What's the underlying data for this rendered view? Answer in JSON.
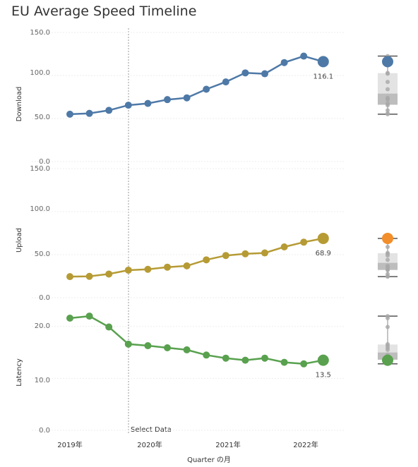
{
  "title": "EU Average Speed Timeline",
  "x_axis_label": "Quarter の月",
  "x_tick_labels": [
    "2019年",
    "2020年",
    "2021年",
    "2022年"
  ],
  "reference_line_label": "Select Data",
  "colors": {
    "download": "#4e79a7",
    "upload": "#b69b35",
    "latency": "#59a14f",
    "upload_box_dot": "#f28e2b",
    "grid": "#eeeeee",
    "box": "#d8d8d8"
  },
  "chart_data": [
    {
      "type": "line",
      "ylabel": "Download",
      "ylim": [
        0,
        150
      ],
      "yticks": [
        "0.0",
        "50.0",
        "100.0",
        "150.0"
      ],
      "x": [
        "2019 Q1",
        "2019 Q2",
        "2019 Q3",
        "2019 Q4",
        "2020 Q1",
        "2020 Q2",
        "2020 Q3",
        "2020 Q4",
        "2021 Q1",
        "2021 Q2",
        "2021 Q3",
        "2021 Q4",
        "2022 Q1",
        "2022 Q2"
      ],
      "values": [
        55.0,
        56.0,
        59.5,
        65.5,
        67.5,
        72.0,
        74.0,
        84.0,
        92.5,
        103.0,
        102.0,
        115.0,
        122.5,
        116.1
      ],
      "last_label": "116.1"
    },
    {
      "type": "line",
      "ylabel": "Upload",
      "ylim": [
        0,
        150
      ],
      "yticks": [
        "0.0",
        "50.0",
        "100.0",
        "150.0"
      ],
      "x": [
        "2019 Q1",
        "2019 Q2",
        "2019 Q3",
        "2019 Q4",
        "2020 Q1",
        "2020 Q2",
        "2020 Q3",
        "2020 Q4",
        "2021 Q1",
        "2021 Q2",
        "2021 Q3",
        "2021 Q4",
        "2022 Q1",
        "2022 Q2"
      ],
      "values": [
        24.5,
        24.8,
        27.5,
        32.0,
        33.0,
        35.5,
        37.0,
        44.0,
        49.0,
        51.0,
        52.0,
        59.0,
        64.5,
        68.9
      ],
      "last_label": "68.9"
    },
    {
      "type": "line",
      "ylabel": "Latency",
      "ylim": [
        0,
        25
      ],
      "yticks": [
        "0.0",
        "10.0",
        "20.0"
      ],
      "x": [
        "2019 Q1",
        "2019 Q2",
        "2019 Q3",
        "2019 Q4",
        "2020 Q1",
        "2020 Q2",
        "2020 Q3",
        "2020 Q4",
        "2021 Q1",
        "2021 Q2",
        "2021 Q3",
        "2021 Q4",
        "2022 Q1",
        "2022 Q2"
      ],
      "values": [
        21.6,
        22.0,
        19.9,
        16.6,
        16.3,
        15.9,
        15.5,
        14.5,
        13.9,
        13.5,
        13.9,
        13.1,
        12.8,
        13.5
      ],
      "last_label": "13.5"
    }
  ]
}
